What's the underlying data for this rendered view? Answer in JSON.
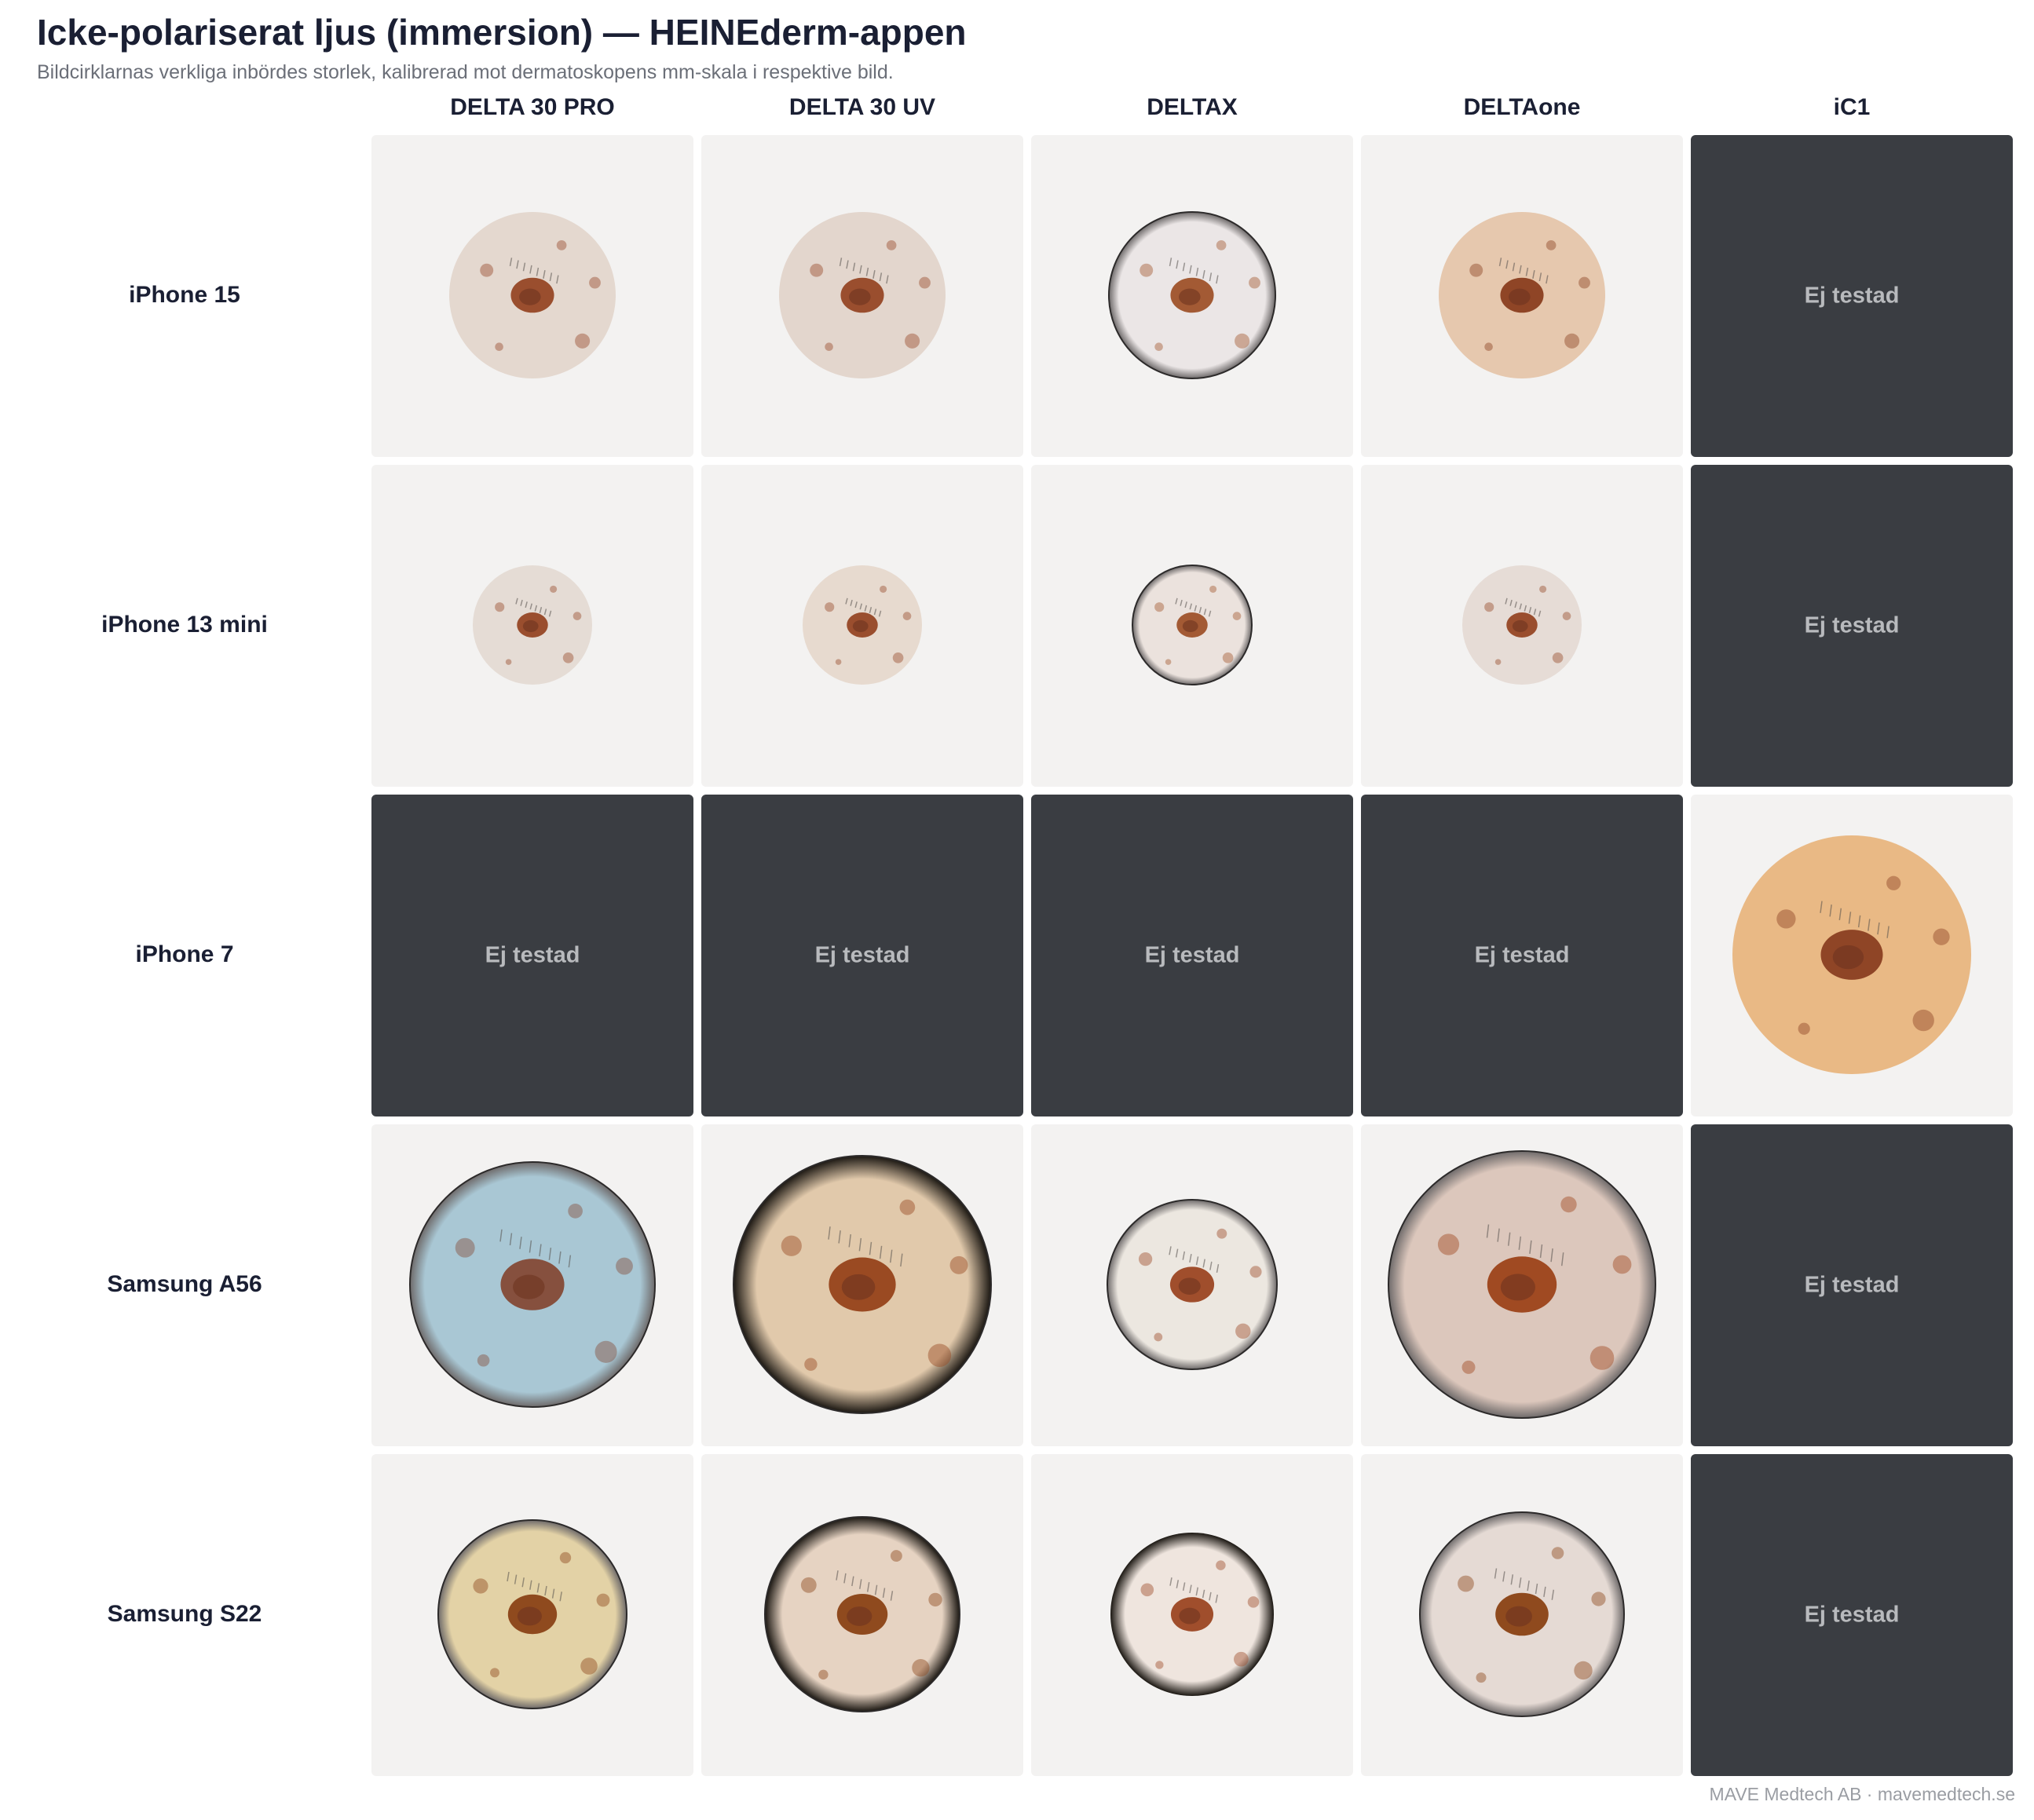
{
  "title": "Icke-polariserat ljus (immersion) — HEINEderm-appen",
  "subtitle": "Bildcirklarnas verkliga inbördes storlek, kalibrerad mot dermatoskopens mm-skala i respektive bild.",
  "columns": [
    "DELTA 30 PRO",
    "DELTA 30 UV",
    "DELTAX",
    "DELTAone",
    "iC1"
  ],
  "rows": [
    {
      "label": "iPhone 15",
      "cells": [
        {
          "tested": true,
          "diameter_mm": 10.6,
          "skin": "#e4d8cf",
          "lesion": "#9a4e2e",
          "ring": false
        },
        {
          "tested": true,
          "diameter_mm": 10.6,
          "skin": "#e3d6cd",
          "lesion": "#9a4e2e",
          "ring": false
        },
        {
          "tested": true,
          "diameter_mm": 10.6,
          "skin": "#ebe6e6",
          "lesion": "#a35a34",
          "ring": true
        },
        {
          "tested": true,
          "diameter_mm": 10.6,
          "skin": "#e6c8ae",
          "lesion": "#8f4526",
          "ring": false
        },
        {
          "tested": false,
          "label": "Ej testad"
        }
      ]
    },
    {
      "label": "iPhone 13 mini",
      "cells": [
        {
          "tested": true,
          "diameter_mm": 7.6,
          "skin": "#e5dcd5",
          "lesion": "#9a4e2e",
          "ring": false
        },
        {
          "tested": true,
          "diameter_mm": 7.6,
          "skin": "#e7dacf",
          "lesion": "#9a4e2e",
          "ring": false
        },
        {
          "tested": true,
          "diameter_mm": 7.6,
          "skin": "#ebe2dd",
          "lesion": "#a35a34",
          "ring": true
        },
        {
          "tested": true,
          "diameter_mm": 7.6,
          "skin": "#e6dcd6",
          "lesion": "#9a4e2e",
          "ring": false
        },
        {
          "tested": false,
          "label": "Ej testad"
        }
      ]
    },
    {
      "label": "iPhone 7",
      "cells": [
        {
          "tested": false,
          "label": "Ej testad"
        },
        {
          "tested": false,
          "label": "Ej testad"
        },
        {
          "tested": false,
          "label": "Ej testad"
        },
        {
          "tested": false,
          "label": "Ej testad"
        },
        {
          "tested": true,
          "diameter_mm": 15.2,
          "skin": "#e9b985",
          "lesion": "#8f4526",
          "ring": false
        }
      ]
    },
    {
      "label": "Samsung A56",
      "cells": [
        {
          "tested": true,
          "diameter_mm": 15.6,
          "skin": "#a9c7d4",
          "lesion": "#86503e",
          "ring": true
        },
        {
          "tested": true,
          "diameter_mm": 16.4,
          "skin": "#e1c9ab",
          "lesion": "#9a4a22",
          "ring": true,
          "dark_vignette": true
        },
        {
          "tested": true,
          "diameter_mm": 10.8,
          "skin": "#ece7e0",
          "lesion": "#a04e2c",
          "ring": true
        },
        {
          "tested": true,
          "diameter_mm": 17.0,
          "skin": "#dcc7bc",
          "lesion": "#a04a22",
          "ring": true
        },
        {
          "tested": false,
          "label": "Ej testad"
        }
      ]
    },
    {
      "label": "Samsung S22",
      "cells": [
        {
          "tested": true,
          "diameter_mm": 12.0,
          "skin": "#e3d2a6",
          "lesion": "#8f4a1e",
          "ring": true
        },
        {
          "tested": true,
          "diameter_mm": 12.4,
          "skin": "#e6d3c2",
          "lesion": "#8f4a1e",
          "ring": true,
          "dark_vignette": true
        },
        {
          "tested": true,
          "diameter_mm": 10.4,
          "skin": "#efe5de",
          "lesion": "#a04e2c",
          "ring": false,
          "dark_vignette": true
        },
        {
          "tested": true,
          "diameter_mm": 13.0,
          "skin": "#e5dad4",
          "lesion": "#8f4a1e",
          "ring": true
        },
        {
          "tested": false,
          "label": "Ej testad"
        }
      ]
    }
  ],
  "footer": "MAVE Medtech AB · mavemedtech.se",
  "colors": {
    "untested_bg": "#3a3d42",
    "tested_bg": "#f3f2f1",
    "text_dark": "#1a1f33"
  }
}
